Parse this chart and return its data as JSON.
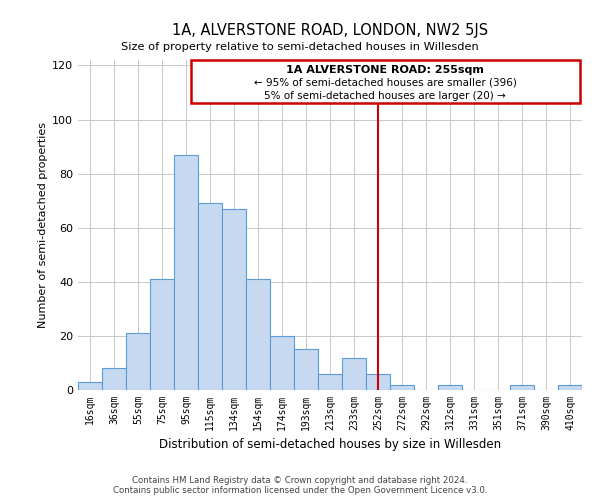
{
  "title": "1A, ALVERSTONE ROAD, LONDON, NW2 5JS",
  "subtitle": "Size of property relative to semi-detached houses in Willesden",
  "xlabel": "Distribution of semi-detached houses by size in Willesden",
  "ylabel": "Number of semi-detached properties",
  "bar_labels": [
    "16sqm",
    "36sqm",
    "55sqm",
    "75sqm",
    "95sqm",
    "115sqm",
    "134sqm",
    "154sqm",
    "174sqm",
    "193sqm",
    "213sqm",
    "233sqm",
    "252sqm",
    "272sqm",
    "292sqm",
    "312sqm",
    "331sqm",
    "351sqm",
    "371sqm",
    "390sqm",
    "410sqm"
  ],
  "bar_heights": [
    3,
    8,
    21,
    41,
    87,
    69,
    67,
    41,
    20,
    15,
    6,
    12,
    6,
    2,
    0,
    2,
    0,
    0,
    2,
    0,
    2
  ],
  "bar_color": "#c6d9f0",
  "bar_edge_color": "#5b9bd5",
  "vline_x_idx": 12,
  "vline_color": "#cc0000",
  "ylim": [
    0,
    122
  ],
  "yticks": [
    0,
    20,
    40,
    60,
    80,
    100,
    120
  ],
  "annotation_title": "1A ALVERSTONE ROAD: 255sqm",
  "annotation_line1": "← 95% of semi-detached houses are smaller (396)",
  "annotation_line2": "5% of semi-detached houses are larger (20) →",
  "footer_line1": "Contains HM Land Registry data © Crown copyright and database right 2024.",
  "footer_line2": "Contains public sector information licensed under the Open Government Licence v3.0.",
  "background_color": "#ffffff",
  "grid_color": "#c8c8c8"
}
